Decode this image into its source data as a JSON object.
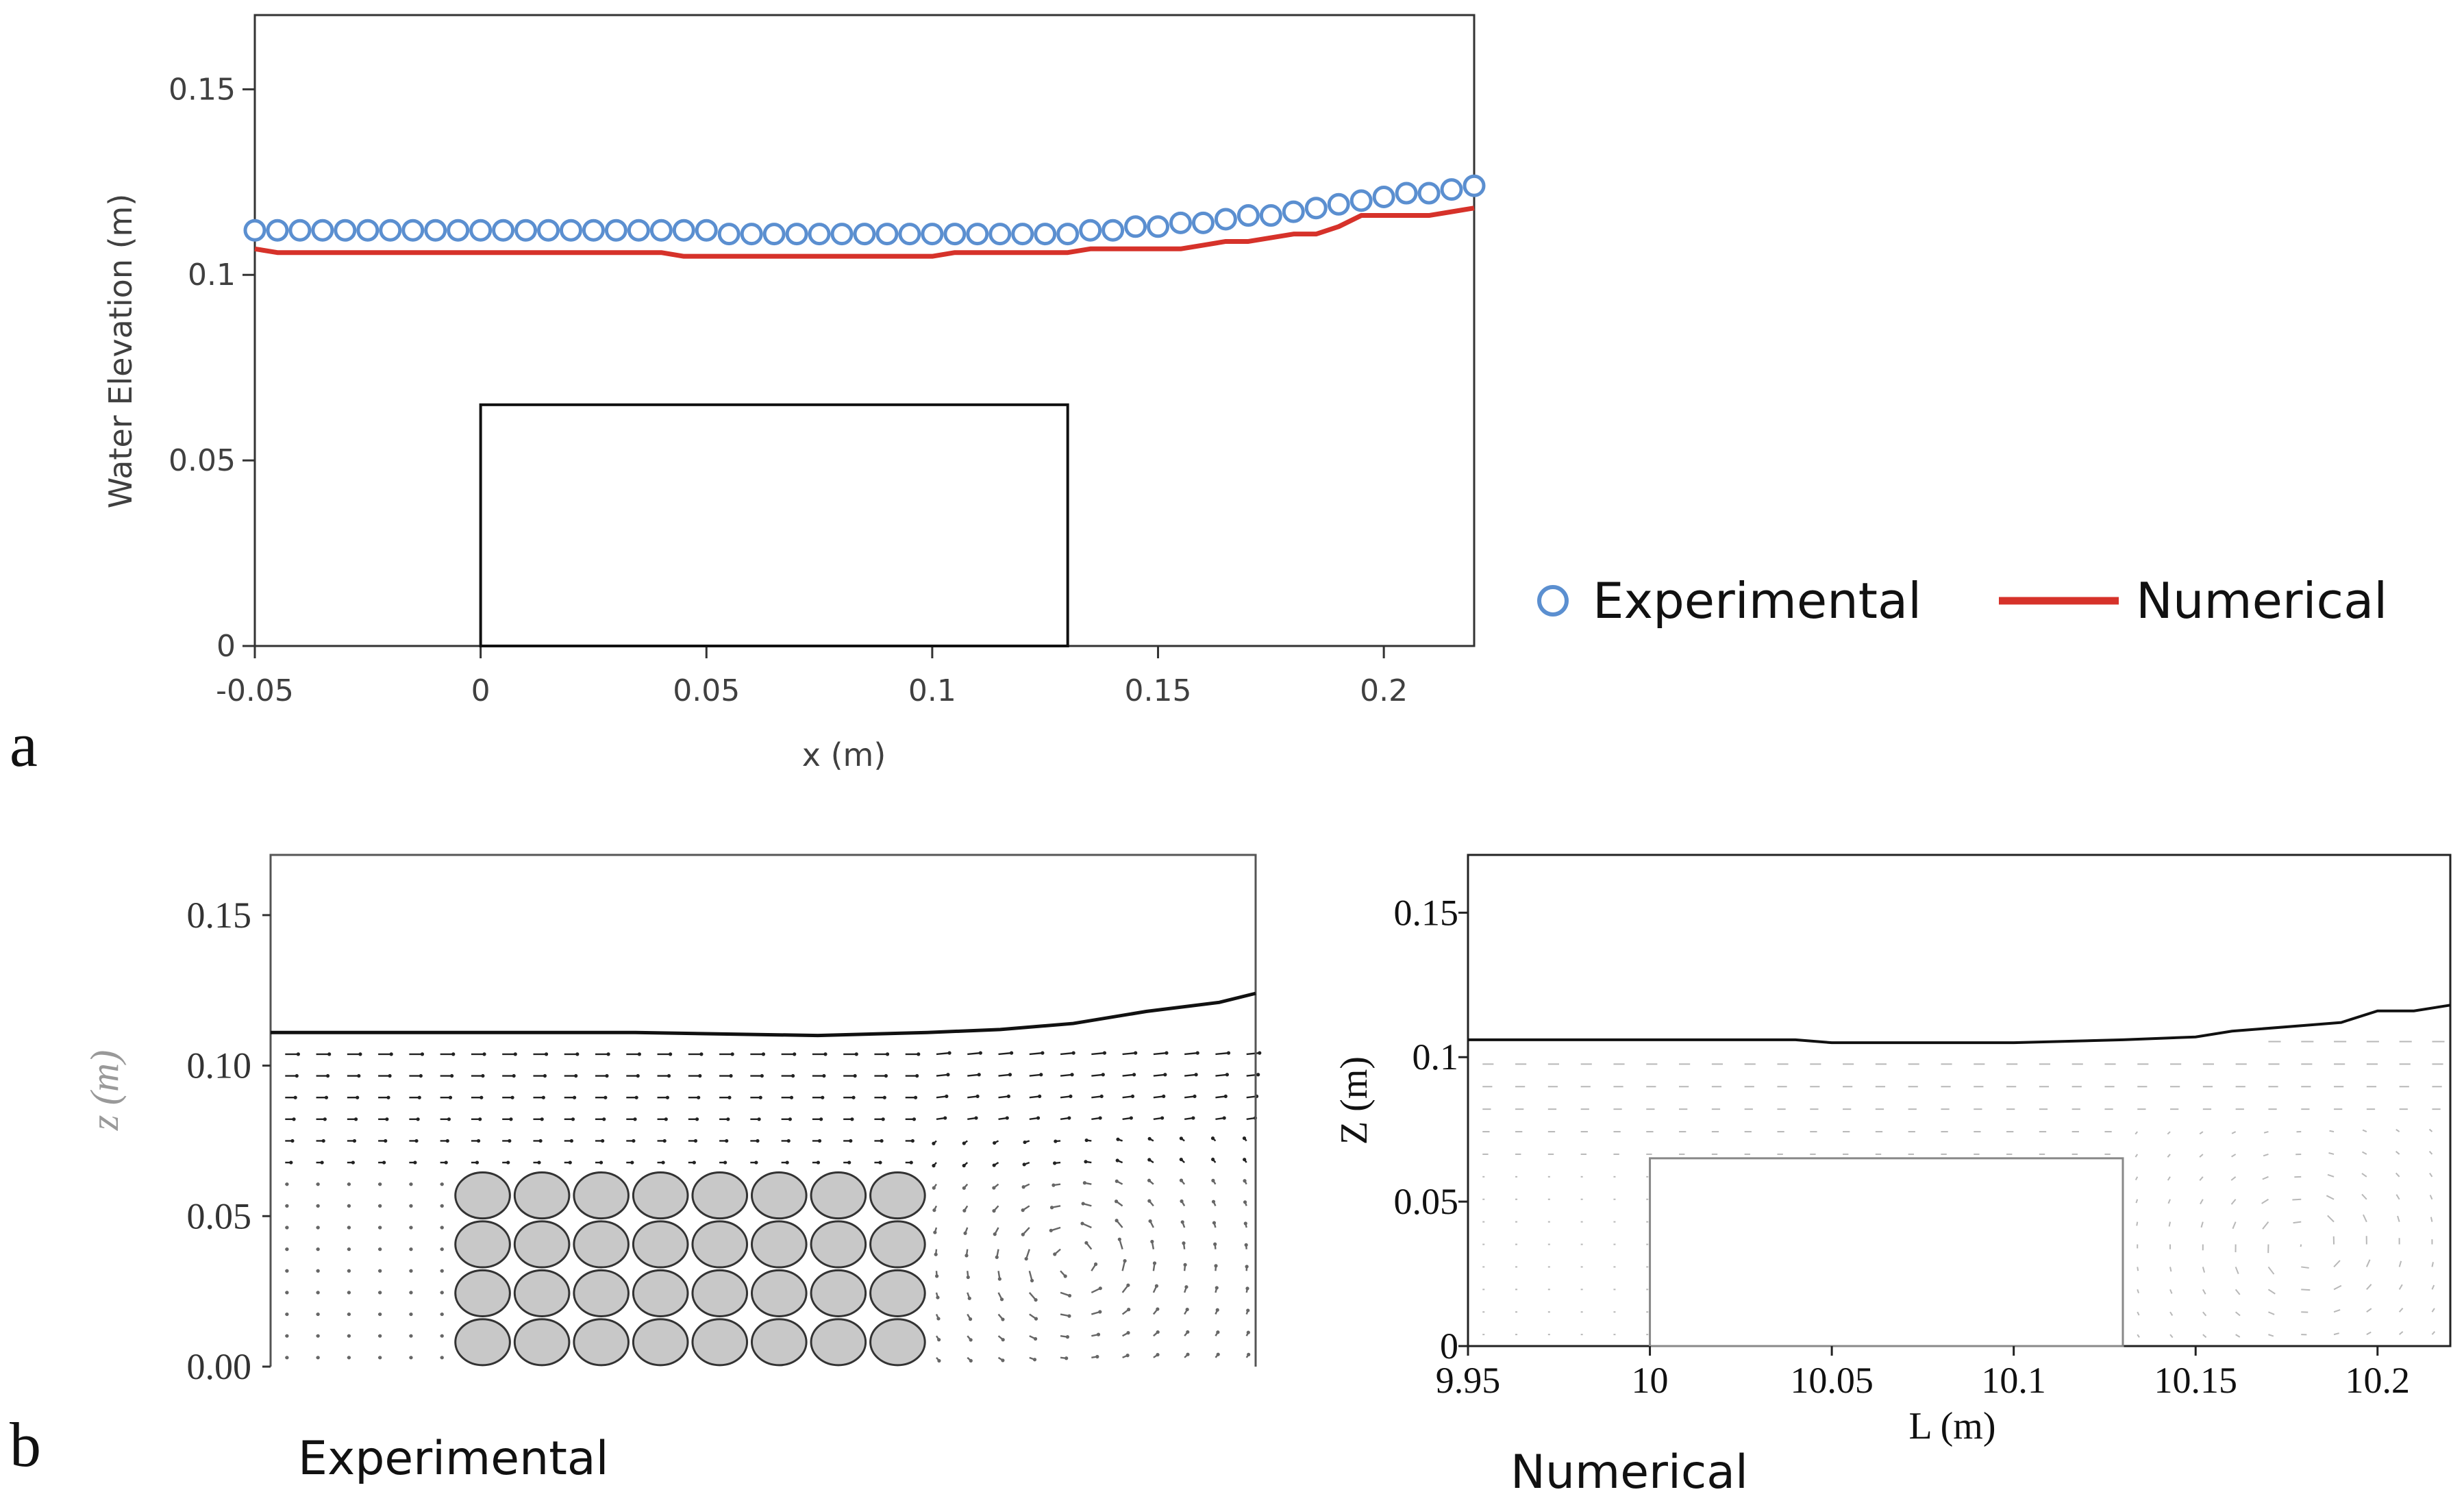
{
  "panel_labels": {
    "a": "a",
    "b": "b"
  },
  "captions": {
    "experimental": "Experimental",
    "numerical": "Numerical"
  },
  "colors": {
    "experimental": "#5b8fd0",
    "numerical": "#d6322a",
    "axis": "#222222",
    "tick_text": "#404040",
    "particle_fill": "#c8c8c8"
  },
  "chart_data": [
    {
      "id": "a",
      "type": "line",
      "title": "",
      "xlabel": "x (m)",
      "ylabel": "Water Elevation (m)",
      "xlim": [
        -0.05,
        0.22
      ],
      "ylim": [
        0,
        0.17
      ],
      "xticks": [
        -0.05,
        0,
        0.05,
        0.1,
        0.15,
        0.2
      ],
      "xtick_labels": [
        "-0.05",
        "0",
        "0.05",
        "0.1",
        "0.15",
        "0.2"
      ],
      "yticks": [
        0,
        0.05,
        0.1,
        0.15
      ],
      "ytick_labels": [
        "0",
        "0.05",
        "0.1",
        "0.15"
      ],
      "legend": {
        "position": "right",
        "entries": [
          "Experimental",
          "Numerical"
        ]
      },
      "obstacle": {
        "x0": 0,
        "x1": 0.13,
        "height": 0.065
      },
      "series": [
        {
          "name": "Experimental",
          "style": "open-circle",
          "x": [
            -0.05,
            -0.045,
            -0.04,
            -0.035,
            -0.03,
            -0.025,
            -0.02,
            -0.015,
            -0.01,
            -0.005,
            0,
            0.005,
            0.01,
            0.015,
            0.02,
            0.025,
            0.03,
            0.035,
            0.04,
            0.045,
            0.05,
            0.055,
            0.06,
            0.065,
            0.07,
            0.075,
            0.08,
            0.085,
            0.09,
            0.095,
            0.1,
            0.105,
            0.11,
            0.115,
            0.12,
            0.125,
            0.13,
            0.135,
            0.14,
            0.145,
            0.15,
            0.155,
            0.16,
            0.165,
            0.17,
            0.175,
            0.18,
            0.185,
            0.19,
            0.195,
            0.2,
            0.205,
            0.21,
            0.215,
            0.22
          ],
          "y": [
            0.112,
            0.112,
            0.112,
            0.112,
            0.112,
            0.112,
            0.112,
            0.112,
            0.112,
            0.112,
            0.112,
            0.112,
            0.112,
            0.112,
            0.112,
            0.112,
            0.112,
            0.112,
            0.112,
            0.112,
            0.112,
            0.111,
            0.111,
            0.111,
            0.111,
            0.111,
            0.111,
            0.111,
            0.111,
            0.111,
            0.111,
            0.111,
            0.111,
            0.111,
            0.111,
            0.111,
            0.111,
            0.112,
            0.112,
            0.113,
            0.113,
            0.114,
            0.114,
            0.115,
            0.116,
            0.116,
            0.117,
            0.118,
            0.119,
            0.12,
            0.121,
            0.122,
            0.122,
            0.123,
            0.124
          ]
        },
        {
          "name": "Numerical",
          "style": "line",
          "x": [
            -0.05,
            -0.045,
            -0.04,
            0,
            0.04,
            0.045,
            0.05,
            0.1,
            0.105,
            0.13,
            0.135,
            0.14,
            0.155,
            0.16,
            0.165,
            0.17,
            0.175,
            0.18,
            0.185,
            0.19,
            0.195,
            0.2,
            0.21,
            0.215,
            0.22
          ],
          "y": [
            0.107,
            0.106,
            0.106,
            0.106,
            0.106,
            0.105,
            0.105,
            0.105,
            0.106,
            0.106,
            0.107,
            0.107,
            0.107,
            0.108,
            0.109,
            0.109,
            0.11,
            0.111,
            0.111,
            0.113,
            0.116,
            0.116,
            0.116,
            0.117,
            0.118
          ]
        }
      ]
    },
    {
      "id": "b-experimental",
      "type": "line",
      "title": "",
      "xlabel": "",
      "ylabel": "z (m)",
      "xlim": [
        -0.05,
        0.22
      ],
      "ylim": [
        0,
        0.17
      ],
      "yticks": [
        0,
        0.05,
        0.1,
        0.15
      ],
      "ytick_labels": [
        "0.00",
        "0.05",
        "0.10",
        "0.15"
      ],
      "particle_rows": 4,
      "particle_cols": 8,
      "obstacle": {
        "x0": 0,
        "x1": 0.13,
        "height": 0.065
      },
      "vortex": {
        "x": 0.17,
        "z": 0.035
      },
      "series": [
        {
          "name": "Free surface",
          "x": [
            -0.05,
            0,
            0.05,
            0.1,
            0.13,
            0.15,
            0.17,
            0.19,
            0.21,
            0.22
          ],
          "y": [
            0.111,
            0.111,
            0.111,
            0.11,
            0.111,
            0.112,
            0.114,
            0.118,
            0.121,
            0.124
          ]
        }
      ]
    },
    {
      "id": "b-numerical",
      "type": "line",
      "title": "",
      "xlabel": "L (m)",
      "ylabel": "Z (m)",
      "xlim": [
        9.95,
        10.22
      ],
      "ylim": [
        0,
        0.17
      ],
      "xticks": [
        9.95,
        10,
        10.05,
        10.1,
        10.15,
        10.2
      ],
      "xtick_labels": [
        "9.95",
        "10",
        "10.05",
        "10.1",
        "10.15",
        "10.2"
      ],
      "yticks": [
        0,
        0.05,
        0.1,
        0.15
      ],
      "ytick_labels": [
        "0",
        "0.05",
        "0.1",
        "0.15"
      ],
      "obstacle": {
        "x0": 10,
        "x1": 10.13,
        "height": 0.065
      },
      "vortex": {
        "x": 10.18,
        "z": 0.035
      },
      "series": [
        {
          "name": "Free surface",
          "x": [
            9.95,
            9.99,
            10.04,
            10.05,
            10.1,
            10.13,
            10.15,
            10.16,
            10.18,
            10.19,
            10.2,
            10.21,
            10.22
          ],
          "y": [
            0.106,
            0.106,
            0.106,
            0.105,
            0.105,
            0.106,
            0.107,
            0.109,
            0.111,
            0.112,
            0.116,
            0.116,
            0.118
          ]
        }
      ]
    }
  ]
}
